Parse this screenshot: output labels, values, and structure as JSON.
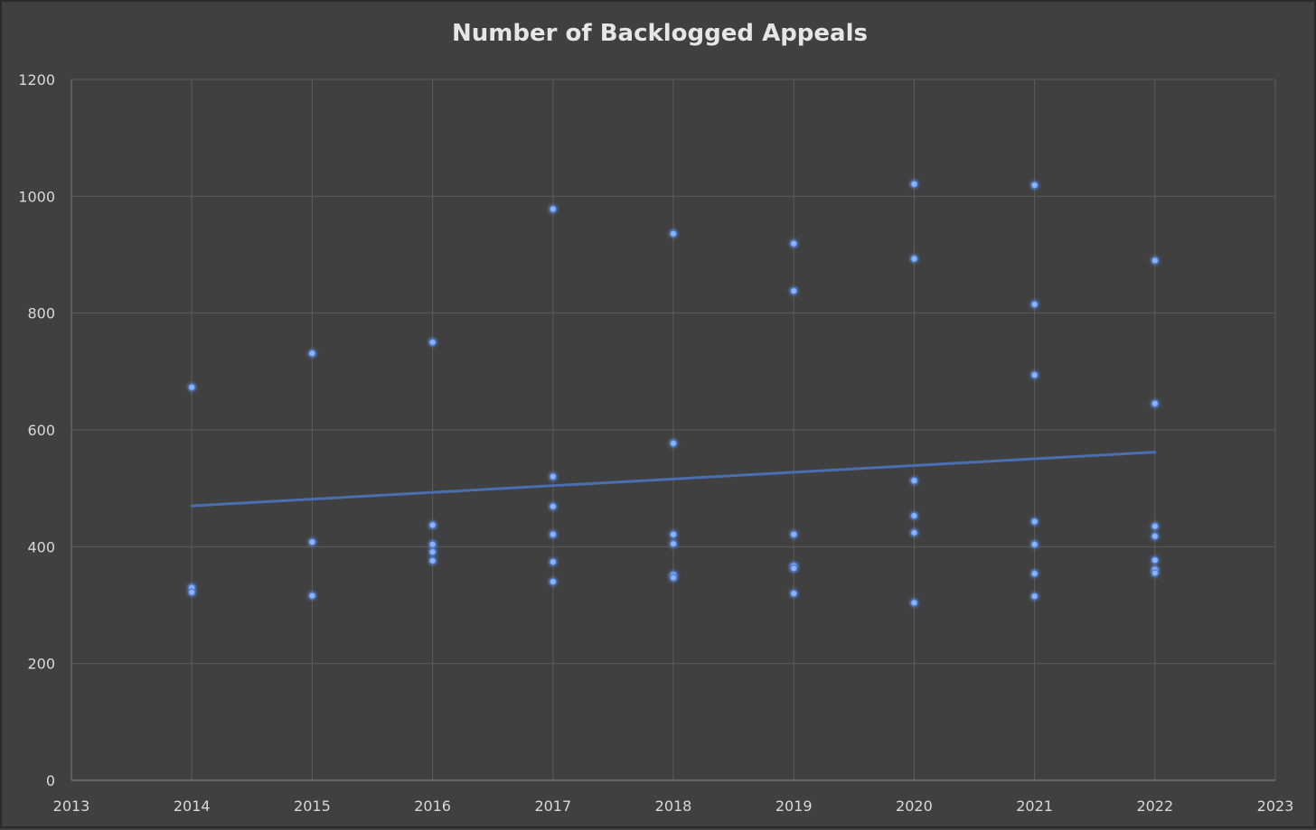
{
  "chart_data": {
    "type": "scatter",
    "title": "Number of Backlogged Appeals",
    "xlabel": "",
    "ylabel": "",
    "xlim": [
      2013,
      2023
    ],
    "ylim": [
      0,
      1200
    ],
    "xticks": [
      "2013",
      "2014",
      "2015",
      "2016",
      "2017",
      "2018",
      "2019",
      "2020",
      "2021",
      "2022",
      "2023"
    ],
    "yticks": [
      "0",
      "200",
      "400",
      "600",
      "800",
      "1000",
      "1200"
    ],
    "grid": true,
    "legend": "none",
    "colors": {
      "background": "#404040",
      "grid": "#5c5c5c",
      "point": "#8ab4f8",
      "trendline": "#4a6eb0",
      "text": "#d9d9d9"
    },
    "series": [
      {
        "points": [
          {
            "x": 2014,
            "y": 673
          },
          {
            "x": 2014,
            "y": 330
          },
          {
            "x": 2014,
            "y": 322
          },
          {
            "x": 2015,
            "y": 731
          },
          {
            "x": 2015,
            "y": 408
          },
          {
            "x": 2015,
            "y": 316
          },
          {
            "x": 2016,
            "y": 750
          },
          {
            "x": 2016,
            "y": 437
          },
          {
            "x": 2016,
            "y": 404
          },
          {
            "x": 2016,
            "y": 391
          },
          {
            "x": 2016,
            "y": 376
          },
          {
            "x": 2017,
            "y": 978
          },
          {
            "x": 2017,
            "y": 520
          },
          {
            "x": 2017,
            "y": 469
          },
          {
            "x": 2017,
            "y": 421
          },
          {
            "x": 2017,
            "y": 374
          },
          {
            "x": 2017,
            "y": 340
          },
          {
            "x": 2018,
            "y": 936
          },
          {
            "x": 2018,
            "y": 577
          },
          {
            "x": 2018,
            "y": 421
          },
          {
            "x": 2018,
            "y": 405
          },
          {
            "x": 2018,
            "y": 352
          },
          {
            "x": 2018,
            "y": 347
          },
          {
            "x": 2019,
            "y": 919
          },
          {
            "x": 2019,
            "y": 838
          },
          {
            "x": 2019,
            "y": 421
          },
          {
            "x": 2019,
            "y": 367
          },
          {
            "x": 2019,
            "y": 363
          },
          {
            "x": 2019,
            "y": 320
          },
          {
            "x": 2020,
            "y": 1021
          },
          {
            "x": 2020,
            "y": 893
          },
          {
            "x": 2020,
            "y": 513
          },
          {
            "x": 2020,
            "y": 453
          },
          {
            "x": 2020,
            "y": 424
          },
          {
            "x": 2020,
            "y": 304
          },
          {
            "x": 2021,
            "y": 1019
          },
          {
            "x": 2021,
            "y": 815
          },
          {
            "x": 2021,
            "y": 694
          },
          {
            "x": 2021,
            "y": 443
          },
          {
            "x": 2021,
            "y": 404
          },
          {
            "x": 2021,
            "y": 354
          },
          {
            "x": 2021,
            "y": 315
          },
          {
            "x": 2022,
            "y": 890
          },
          {
            "x": 2022,
            "y": 645
          },
          {
            "x": 2022,
            "y": 435
          },
          {
            "x": 2022,
            "y": 418
          },
          {
            "x": 2022,
            "y": 377
          },
          {
            "x": 2022,
            "y": 361
          },
          {
            "x": 2022,
            "y": 355
          }
        ]
      }
    ],
    "trendline": {
      "type": "linear",
      "from": {
        "x": 2014,
        "y": 470
      },
      "to": {
        "x": 2022,
        "y": 562
      }
    }
  }
}
